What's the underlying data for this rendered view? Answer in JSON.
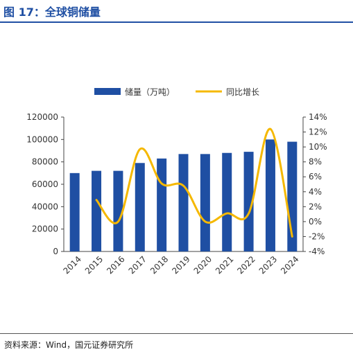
{
  "header": {
    "title": "图 17：全球铜储量"
  },
  "footer": {
    "source": "资料来源：Wind，国元证券研究所"
  },
  "colors": {
    "bar": "#1f4fa3",
    "line": "#f5b800",
    "accent": "#1f4fa3"
  },
  "chart_data": {
    "type": "bar",
    "title": "",
    "categories": [
      "2014",
      "2015",
      "2016",
      "2017",
      "2018",
      "2019",
      "2020",
      "2021",
      "2022",
      "2023",
      "2024"
    ],
    "series": [
      {
        "name": "储量（万吨）",
        "type": "bar",
        "axis": "left",
        "values": [
          70000,
          72000,
          72000,
          79000,
          83000,
          87000,
          87000,
          88000,
          89000,
          100000,
          98000
        ]
      },
      {
        "name": "同比增长",
        "type": "line",
        "axis": "right",
        "unit": "%",
        "values": [
          null,
          2.9,
          0.0,
          9.7,
          5.1,
          4.8,
          0.0,
          1.1,
          1.1,
          12.4,
          -2.0
        ]
      }
    ],
    "ylim_left": [
      0,
      120000
    ],
    "yticks_left": [
      "0",
      "20000",
      "40000",
      "60000",
      "80000",
      "100000",
      "120000"
    ],
    "ylim_right": [
      -4,
      14
    ],
    "yticks_right": [
      "-4%",
      "-2%",
      "0%",
      "2%",
      "4%",
      "6%",
      "8%",
      "10%",
      "12%",
      "14%"
    ],
    "legend": "top",
    "grid": false
  }
}
